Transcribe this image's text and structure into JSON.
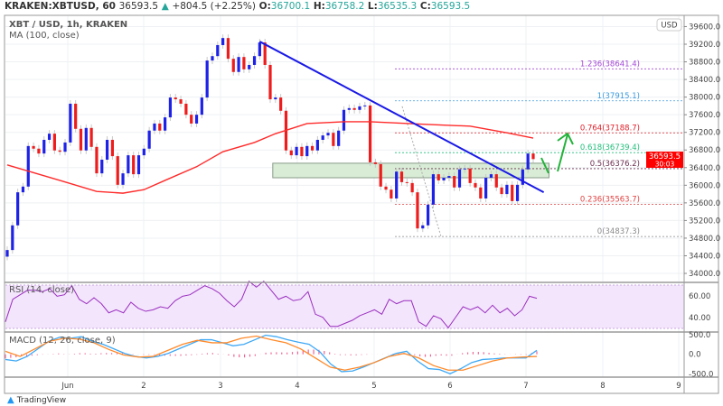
{
  "header": {
    "symbol": "KRAKEN:XBTUSD, 60",
    "last": "36593.5",
    "change_arrow": "▲",
    "change": "+804.5 (+2.25%)",
    "o_label": "O:",
    "o": "36700.1",
    "h_label": "H:",
    "h": "36758.2",
    "l_label": "L:",
    "l": "36535.3",
    "c_label": "C:",
    "c": "36593.5"
  },
  "currency_button": "USD",
  "last_price_tag": {
    "price": "36593.5",
    "countdown": "30:03",
    "color": "#ff0000"
  },
  "brand": "TradingView",
  "chart_data": [
    {
      "type": "candlestick",
      "title": "XBT / USD, 1h, KRAKEN",
      "overlay_label": "MA (100, close)",
      "ylim": [
        33900,
        39700
      ],
      "y_ticks": [
        "34000.0",
        "34400.0",
        "34800.0",
        "35200.0",
        "35600.0",
        "36000.0",
        "36400.0",
        "36800.0",
        "37200.0",
        "37600.0",
        "38000.0",
        "38400.0",
        "38800.0",
        "39200.0",
        "39600.0"
      ],
      "x_ticks": [
        "Jun",
        "2",
        "3",
        "4",
        "5",
        "6",
        "7",
        "8",
        "9"
      ],
      "grid": true,
      "colors": {
        "up": "#1e22e6",
        "down": "#ee1c1c",
        "ma": "#ff2a2a",
        "trendline": "#1a1ae6",
        "zone": "#d8ecd6",
        "arrow": "#22b33a"
      },
      "closes": [
        34530,
        35090,
        35840,
        35970,
        36890,
        36830,
        36720,
        37030,
        37170,
        36790,
        36760,
        36970,
        37850,
        37280,
        36790,
        37300,
        36870,
        36270,
        36580,
        37030,
        36660,
        36010,
        36270,
        36680,
        36250,
        36680,
        36830,
        37240,
        37400,
        37240,
        37540,
        37990,
        37950,
        37850,
        37600,
        37400,
        37600,
        37990,
        38830,
        38930,
        39180,
        39340,
        38870,
        38570,
        38910,
        38630,
        38730,
        38930,
        39240,
        38730,
        37950,
        37990,
        37690,
        36790,
        36680,
        36870,
        36660,
        36890,
        36790,
        37030,
        37130,
        37190,
        36890,
        37240,
        37710,
        37750,
        37710,
        37790,
        37810,
        36520,
        36480,
        35970,
        35900,
        35700,
        36310,
        36070,
        36050,
        35840,
        35020,
        35090,
        35560,
        36250,
        36110,
        36170,
        36210,
        35950,
        36360,
        36380,
        36050,
        35950,
        35700,
        36170,
        36250,
        35950,
        35800,
        36010,
        35640,
        36010,
        36360,
        36720,
        36593.5
      ],
      "ma100": [
        [
          0,
          36460
        ],
        [
          10,
          36110
        ],
        [
          17,
          35860
        ],
        [
          22,
          35820
        ],
        [
          26,
          35900
        ],
        [
          30,
          36110
        ],
        [
          36,
          36420
        ],
        [
          41,
          36760
        ],
        [
          47,
          36970
        ],
        [
          51,
          37170
        ],
        [
          57,
          37400
        ],
        [
          64,
          37440
        ],
        [
          69,
          37440
        ],
        [
          80,
          37380
        ],
        [
          88,
          37340
        ],
        [
          95,
          37190
        ],
        [
          100,
          37070
        ]
      ],
      "trendline": [
        [
          48,
          39260
        ],
        [
          102,
          35840
        ]
      ],
      "support_zone": {
        "from": 51,
        "to": 103,
        "low": 36170,
        "high": 36500
      },
      "fib_levels": [
        {
          "label": "1.236(38641.4)",
          "price": 38641.4,
          "color": "#a347d6"
        },
        {
          "label": "1(37915.1)",
          "price": 37915.1,
          "color": "#3a9be0"
        },
        {
          "label": "0.764(37188.7)",
          "price": 37188.7,
          "color": "#e0202a"
        },
        {
          "label": "0.618(36739.4)",
          "price": 36739.4,
          "color": "#1fbf7a"
        },
        {
          "label": "0.5(36376.2)",
          "price": 36376.2,
          "color": "#6b2f4f"
        },
        {
          "label": "0.236(35563.7)",
          "price": 35563.7,
          "color": "#e04040"
        },
        {
          "label": "0(34837.3)",
          "price": 34837.3,
          "color": "#8a8a8a"
        }
      ]
    },
    {
      "type": "line",
      "title": "RSI (14, close)",
      "ylim": [
        25,
        78
      ],
      "y_ticks": [
        "60.00",
        "40.00"
      ],
      "band": [
        30,
        70
      ],
      "color": "#9b2fbf",
      "band_color": "#f3e5fc",
      "values": [
        36.1,
        56.9,
        61.1,
        65.3,
        65.3,
        63.9,
        66.7,
        59.7,
        61.1,
        69.4,
        56.9,
        52.8,
        58.3,
        52.8,
        44.4,
        47.2,
        44.4,
        54.2,
        48.6,
        45.8,
        47.2,
        50,
        48.6,
        55.6,
        59.7,
        61.1,
        65.3,
        69.4,
        66.7,
        62.5,
        55.6,
        50,
        56.9,
        73.6,
        68.1,
        73.6,
        65.3,
        56.9,
        59.7,
        55.6,
        56.9,
        63.9,
        43.1,
        40.3,
        31.9,
        31.9,
        34.7,
        37.5,
        41.7,
        44.4,
        47.2,
        43.1,
        56.9,
        52.8,
        55.6,
        55.6,
        36.1,
        31.9,
        41.7,
        38.9,
        30.6,
        40.3,
        50,
        47.2,
        50,
        44.4,
        51.4,
        44.4,
        48.6,
        41.7,
        47.2,
        59.7,
        57.8
      ]
    },
    {
      "type": "line",
      "title": "MACD (12, 26, close, 9)",
      "ylim": [
        -560,
        560
      ],
      "y_ticks": [
        "500.0",
        "0.0",
        "-500.0"
      ],
      "series": [
        {
          "key": "macd",
          "color": "#3fa9f5",
          "values": [
            -133,
            -172,
            -55,
            140,
            335,
            437,
            413,
            452,
            335,
            257,
            140,
            23,
            -55,
            -94,
            -55,
            23,
            140,
            257,
            374,
            374,
            296,
            218,
            257,
            374,
            491,
            452,
            374,
            312,
            257,
            62,
            -250,
            -445,
            -429,
            -328,
            -211,
            -94,
            23,
            78,
            -172,
            -367,
            -390,
            -499,
            -367,
            -211,
            -133,
            -117,
            -94,
            -94,
            -94,
            101
          ]
        },
        {
          "key": "signal",
          "color": "#ff8a2a",
          "values": [
            78,
            -55,
            140,
            335,
            413,
            390,
            296,
            125,
            -16,
            -70,
            -55,
            101,
            257,
            359,
            296,
            296,
            413,
            468,
            374,
            296,
            140,
            -94,
            -328,
            -406,
            -328,
            -211,
            -55,
            23,
            -94,
            -289,
            -406,
            -406,
            -289,
            -172,
            -94,
            -70,
            -55
          ]
        }
      ],
      "histogram_color": "#f06292"
    }
  ]
}
